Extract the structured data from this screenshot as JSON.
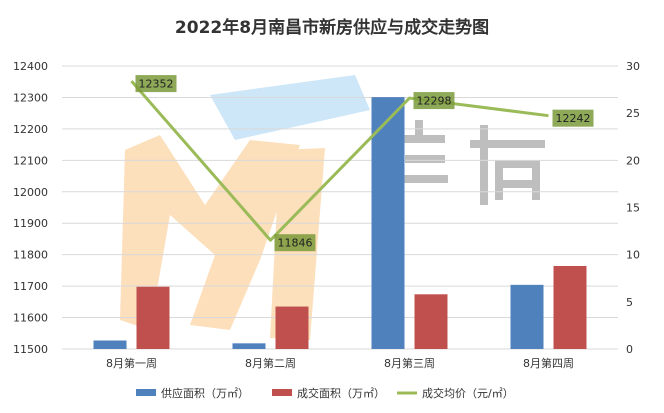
{
  "chart_data": {
    "type": "bar",
    "title": "2022年8月南昌市新房供应与成交走势图",
    "categories": [
      "8月第一周",
      "8月第二周",
      "8月第三周",
      "8月第四周"
    ],
    "y_left": {
      "min": 11500,
      "max": 12400,
      "step": 100
    },
    "y_right": {
      "min": 0,
      "max": 30,
      "step": 5
    },
    "series": [
      {
        "name": "供应面积（万㎡）",
        "type": "bar",
        "axis": "right",
        "values": [
          0.9,
          0.6,
          26.7,
          6.8
        ],
        "color": "#4f81bd"
      },
      {
        "name": "成交面积（万㎡）",
        "type": "bar",
        "axis": "right",
        "values": [
          6.6,
          4.5,
          5.8,
          8.8
        ],
        "color": "#c0504d"
      },
      {
        "name": "成交均价（元/㎡）",
        "type": "line",
        "axis": "left",
        "values": [
          12352,
          11846,
          12298,
          12242
        ],
        "color": "#9bbb59",
        "labels": [
          "12352",
          "11846",
          "12298",
          "12242"
        ]
      }
    ],
    "legend_position": "bottom",
    "grid": true
  }
}
